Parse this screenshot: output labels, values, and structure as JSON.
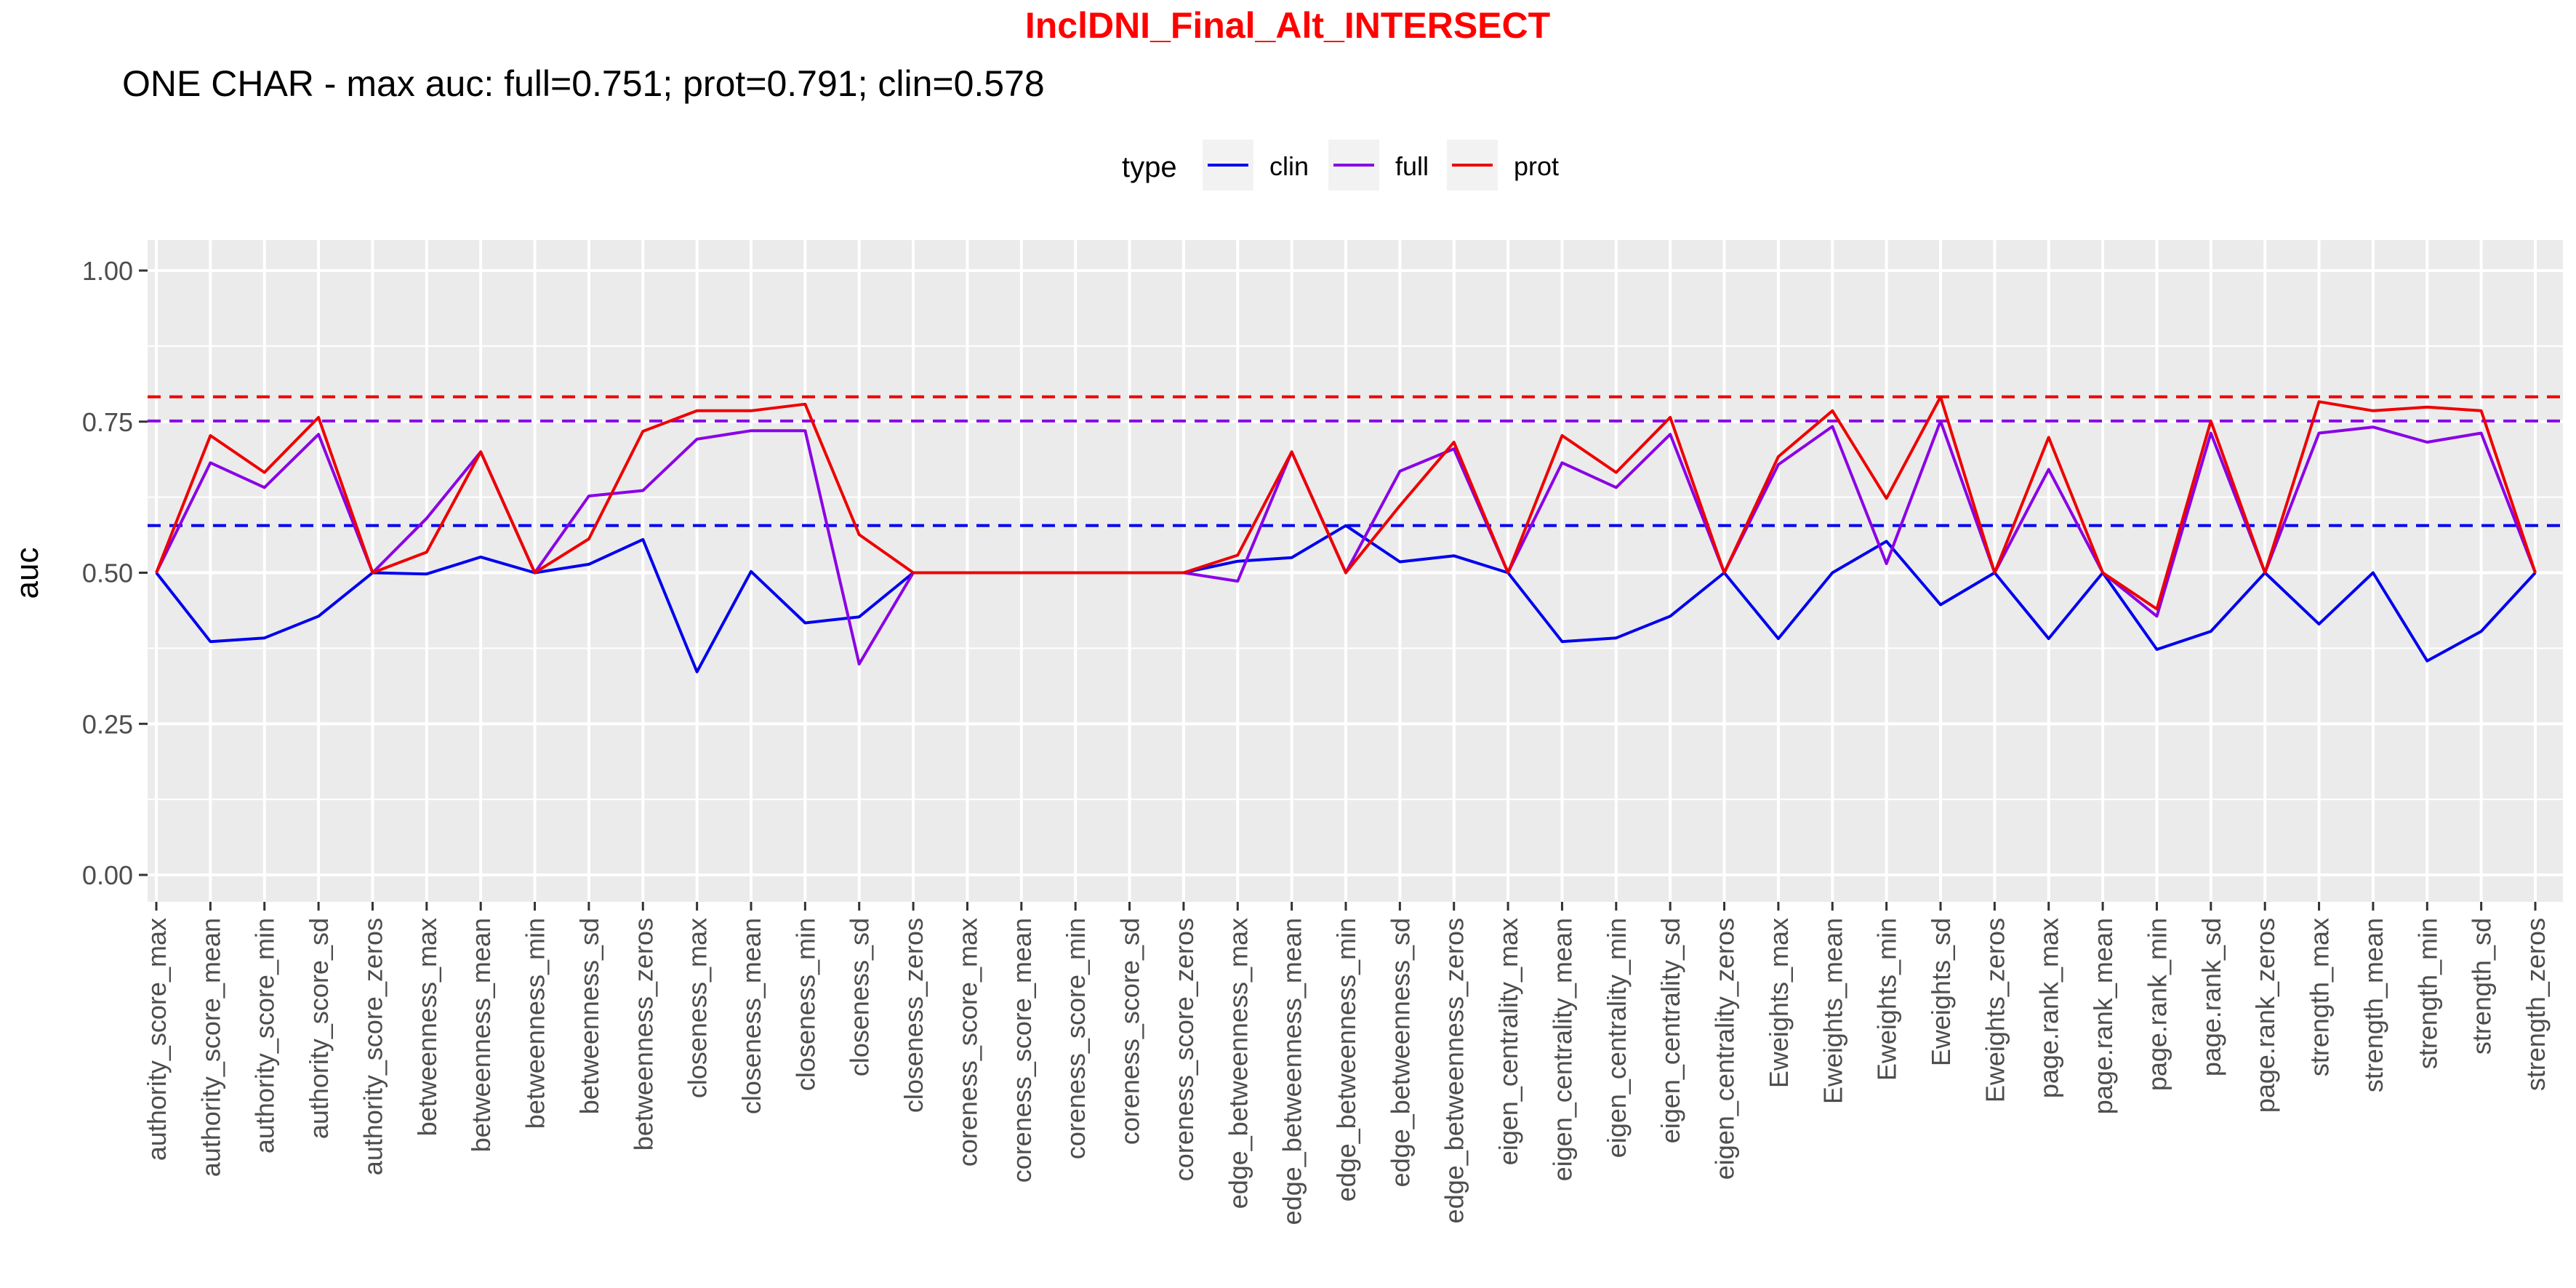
{
  "chart_data": {
    "type": "line",
    "title": "InclDNI_Final_Alt_INTERSECT",
    "subtitle": "ONE CHAR - max auc: full=0.751; prot=0.791; clin=0.578",
    "ylabel": "auc",
    "xlabel": "",
    "ylim": [
      0,
      1
    ],
    "yticks": [
      "0.00",
      "0.25",
      "0.50",
      "0.75",
      "1.00"
    ],
    "grid": true,
    "legend": {
      "title": "type",
      "position": "top",
      "entries": [
        "clin",
        "full",
        "prot"
      ]
    },
    "categories": [
      "authority_score_max",
      "authority_score_mean",
      "authority_score_min",
      "authority_score_sd",
      "authority_score_zeros",
      "betweenness_max",
      "betweenness_mean",
      "betweenness_min",
      "betweenness_sd",
      "betweenness_zeros",
      "closeness_max",
      "closeness_mean",
      "closeness_min",
      "closeness_sd",
      "closeness_zeros",
      "coreness_score_max",
      "coreness_score_mean",
      "coreness_score_min",
      "coreness_score_sd",
      "coreness_score_zeros",
      "edge_betweenness_max",
      "edge_betweenness_mean",
      "edge_betweenness_min",
      "edge_betweenness_sd",
      "edge_betweenness_zeros",
      "eigen_centrality_max",
      "eigen_centrality_mean",
      "eigen_centrality_min",
      "eigen_centrality_sd",
      "eigen_centrality_zeros",
      "Eweights_max",
      "Eweights_mean",
      "Eweights_min",
      "Eweights_sd",
      "Eweights_zeros",
      "page.rank_max",
      "page.rank_mean",
      "page.rank_min",
      "page.rank_sd",
      "page.rank_zeros",
      "strength_max",
      "strength_mean",
      "strength_min",
      "strength_sd",
      "strength_zeros"
    ],
    "series": [
      {
        "name": "clin",
        "color": "#0000ee",
        "values": [
          0.5,
          0.386,
          0.392,
          0.428,
          0.5,
          0.498,
          0.526,
          0.5,
          0.514,
          0.555,
          0.336,
          0.502,
          0.417,
          0.427,
          0.5,
          0.5,
          0.5,
          0.5,
          0.5,
          0.5,
          0.519,
          0.525,
          0.578,
          0.518,
          0.528,
          0.5,
          0.386,
          0.392,
          0.428,
          0.5,
          0.391,
          0.5,
          0.552,
          0.447,
          0.5,
          0.391,
          0.5,
          0.373,
          0.403,
          0.5,
          0.415,
          0.5,
          0.354,
          0.403,
          0.5
        ]
      },
      {
        "name": "full",
        "color": "#8a00e6",
        "values": [
          0.5,
          0.682,
          0.641,
          0.729,
          0.5,
          0.59,
          0.7,
          0.5,
          0.627,
          0.636,
          0.721,
          0.735,
          0.735,
          0.349,
          0.5,
          0.5,
          0.5,
          0.5,
          0.5,
          0.5,
          0.486,
          0.7,
          0.5,
          0.668,
          0.705,
          0.5,
          0.682,
          0.641,
          0.729,
          0.5,
          0.679,
          0.742,
          0.515,
          0.751,
          0.5,
          0.671,
          0.5,
          0.428,
          0.731,
          0.5,
          0.731,
          0.741,
          0.716,
          0.731,
          0.5
        ]
      },
      {
        "name": "prot",
        "color": "#ee0000",
        "values": [
          0.5,
          0.727,
          0.666,
          0.757,
          0.5,
          0.534,
          0.7,
          0.5,
          0.556,
          0.734,
          0.768,
          0.768,
          0.779,
          0.563,
          0.5,
          0.5,
          0.5,
          0.5,
          0.5,
          0.5,
          0.529,
          0.7,
          0.5,
          0.611,
          0.716,
          0.5,
          0.727,
          0.666,
          0.757,
          0.5,
          0.692,
          0.768,
          0.623,
          0.791,
          0.5,
          0.724,
          0.5,
          0.44,
          0.751,
          0.5,
          0.783,
          0.768,
          0.774,
          0.768,
          0.5
        ]
      }
    ],
    "reference_lines": [
      {
        "series": "prot",
        "value": 0.791,
        "color": "#ee0000"
      },
      {
        "series": "full",
        "value": 0.751,
        "color": "#8a00e6"
      },
      {
        "series": "clin",
        "value": 0.578,
        "color": "#0000ee"
      }
    ],
    "panel_background": "#ebebeb",
    "grid_color": "#ffffff"
  }
}
